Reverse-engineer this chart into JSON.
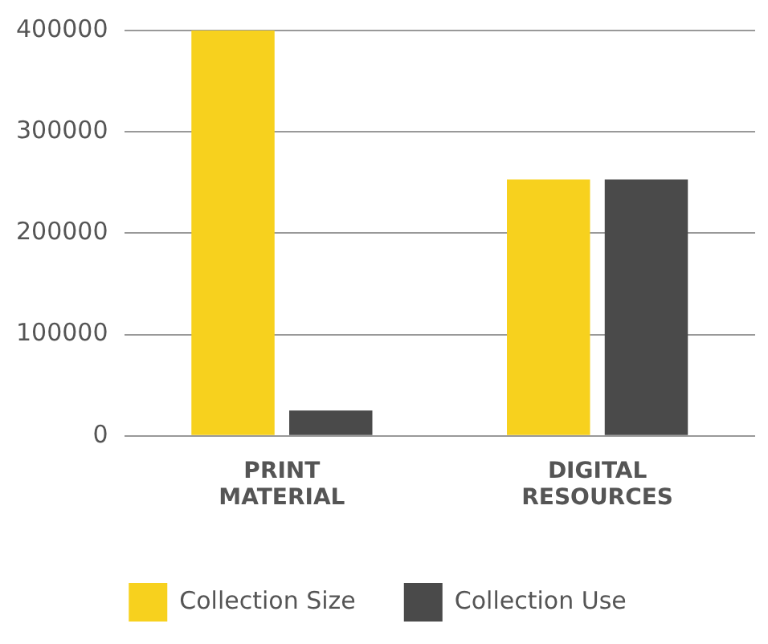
{
  "chart_data": {
    "type": "bar",
    "categories": [
      "PRINT MATERIAL",
      "DIGITAL RESOURCES"
    ],
    "series": [
      {
        "name": "Collection Size",
        "color": "#f7d11e",
        "values": [
          400000,
          253000
        ]
      },
      {
        "name": "Collection Use",
        "color": "#4a4a4a",
        "values": [
          25000,
          253000
        ]
      }
    ],
    "ylim": [
      0,
      400000
    ],
    "yticks": [
      0,
      100000,
      200000,
      300000,
      400000
    ],
    "grid": "y",
    "legend": "bottom"
  }
}
